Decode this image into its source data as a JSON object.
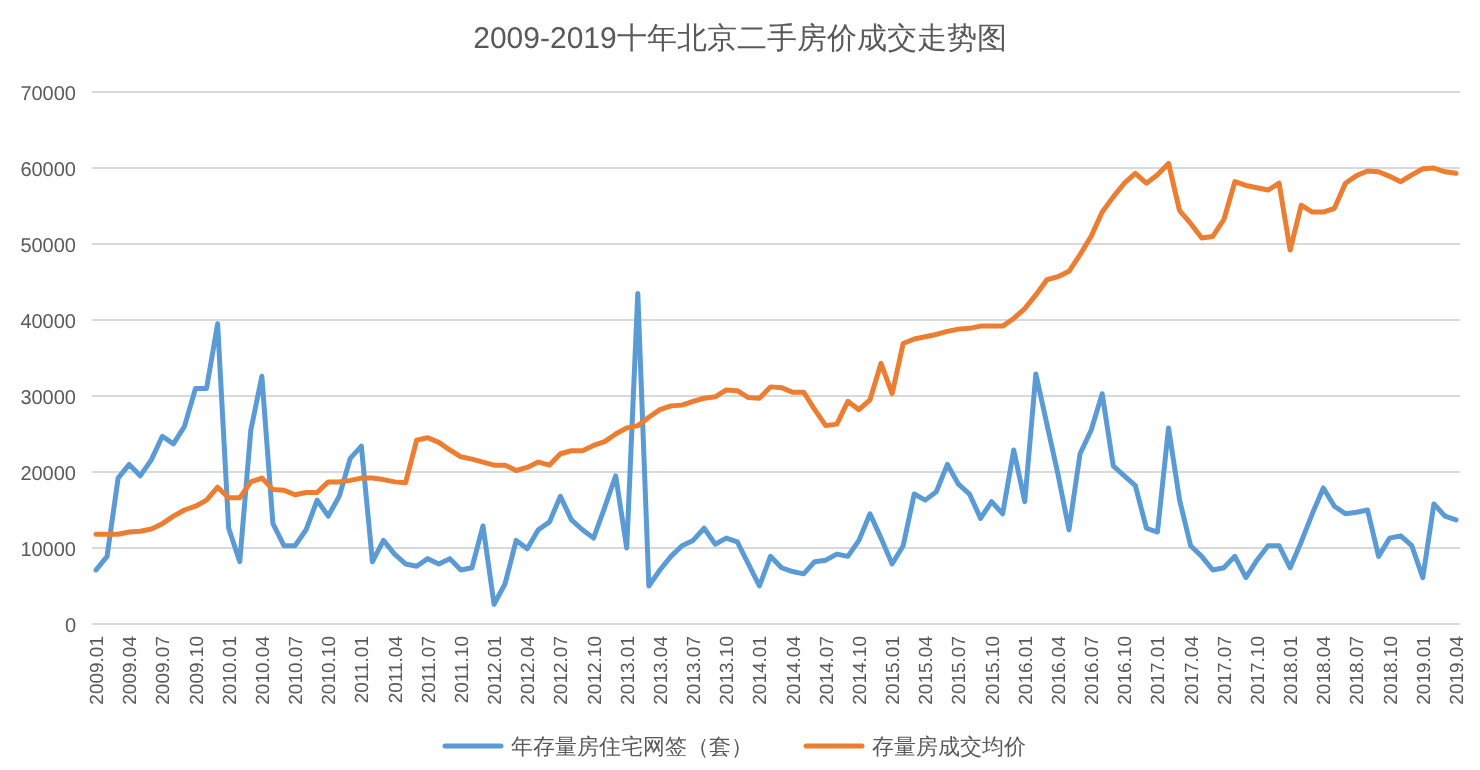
{
  "chart_data": {
    "type": "line",
    "title": "2009-2019十年北京二手房价成交走势图",
    "categories": [
      "2009.01",
      null,
      null,
      "2009.04",
      null,
      null,
      "2009.07",
      null,
      null,
      "2009.10",
      null,
      null,
      "2010.01",
      null,
      null,
      "2010.04",
      null,
      null,
      "2010.07",
      null,
      null,
      "2010.10",
      null,
      null,
      "2011.01",
      null,
      null,
      "2011.04",
      null,
      null,
      "2011.07",
      null,
      null,
      "2011.10",
      null,
      null,
      "2012.01",
      null,
      null,
      "2012.04",
      null,
      null,
      "2012.07",
      null,
      null,
      "2012.10",
      null,
      null,
      "2013.01",
      null,
      null,
      "2013.04",
      null,
      null,
      "2013.07",
      null,
      null,
      "2013.10",
      null,
      null,
      "2014.01",
      null,
      null,
      "2014.04",
      null,
      null,
      "2014.07",
      null,
      null,
      "2014.10",
      null,
      null,
      "2015.01",
      null,
      null,
      "2015.04",
      null,
      null,
      "2015.07",
      null,
      null,
      "2015.10",
      null,
      null,
      "2016.01",
      null,
      null,
      "2016.04",
      null,
      null,
      "2016.07",
      null,
      null,
      "2016.10",
      null,
      null,
      "2017.01",
      null,
      null,
      "2017.04",
      null,
      null,
      "2017.07",
      null,
      null,
      "2017.10",
      null,
      null,
      "2018.01",
      null,
      null,
      "2018.04",
      null,
      null,
      "2018.07",
      null,
      null,
      "2018.10",
      null,
      null,
      "2019.01",
      null,
      null,
      "2019.04"
    ],
    "series": [
      {
        "name": "年存量房住宅网签（套）",
        "color": "#5b9bd5",
        "values": [
          7100,
          8900,
          19200,
          21000,
          19500,
          21600,
          24700,
          23700,
          26000,
          31000,
          31000,
          39500,
          12600,
          8200,
          25500,
          32600,
          13200,
          10300,
          10300,
          12400,
          16300,
          14200,
          16800,
          21800,
          23400,
          8200,
          11000,
          9200,
          7900,
          7600,
          8600,
          7900,
          8600,
          7100,
          7400,
          12900,
          2600,
          5300,
          11000,
          9900,
          12400,
          13400,
          16800,
          13700,
          12400,
          11300,
          15300,
          19500,
          10000,
          43500,
          5000,
          7100,
          8900,
          10300,
          11000,
          12600,
          10500,
          11300,
          10800,
          7900,
          5000,
          8900,
          7400,
          6900,
          6600,
          8200,
          8400,
          9200,
          8900,
          11000,
          14500,
          11300,
          7900,
          10300,
          17100,
          16300,
          17400,
          21000,
          18400,
          17100,
          13900,
          16100,
          14500,
          22900,
          16100,
          32900,
          26300,
          19700,
          12400,
          22400,
          25500,
          30300,
          20800,
          19500,
          18200,
          12600,
          12100,
          25800,
          16300,
          10300,
          8900,
          7100,
          7400,
          8900,
          6100,
          8400,
          10300,
          10300,
          7400,
          10800,
          14500,
          17900,
          15500,
          14500,
          14700,
          15000,
          8900,
          11300,
          11600,
          10300,
          6100,
          15800,
          14200,
          13700
        ]
      },
      {
        "name": "存量房成交均价",
        "color": "#ed7d31",
        "values": [
          11800,
          11800,
          11800,
          12100,
          12200,
          12500,
          13200,
          14200,
          15000,
          15500,
          16300,
          18000,
          16600,
          16600,
          18700,
          19200,
          17700,
          17600,
          17000,
          17300,
          17300,
          18700,
          18700,
          18900,
          19200,
          19200,
          19000,
          18700,
          18600,
          24200,
          24500,
          23900,
          22900,
          22000,
          21700,
          21300,
          20900,
          20900,
          20200,
          20600,
          21300,
          20900,
          22400,
          22800,
          22800,
          23500,
          24000,
          25000,
          25800,
          26100,
          27200,
          28200,
          28700,
          28800,
          29300,
          29700,
          29900,
          30800,
          30700,
          29800,
          29700,
          31200,
          31100,
          30500,
          30500,
          28200,
          26100,
          26300,
          29300,
          28200,
          29500,
          34300,
          30300,
          36900,
          37500,
          37800,
          38100,
          38500,
          38800,
          38900,
          39200,
          39200,
          39200,
          40200,
          41500,
          43300,
          45300,
          45700,
          46400,
          48600,
          51000,
          54200,
          56200,
          58000,
          59300,
          58000,
          59100,
          60600,
          54400,
          52700,
          50800,
          51000,
          53200,
          58200,
          57700,
          57400,
          57100,
          58000,
          49200,
          55100,
          54200,
          54200,
          54700,
          58000,
          59000,
          59600,
          59500,
          58900,
          58200,
          59100,
          59900,
          60000,
          59500,
          59300
        ]
      }
    ],
    "ylim": [
      0,
      70000
    ],
    "yticks": [
      0,
      10000,
      20000,
      30000,
      40000,
      50000,
      60000,
      70000
    ],
    "grid": "y",
    "legend": "bottom"
  }
}
